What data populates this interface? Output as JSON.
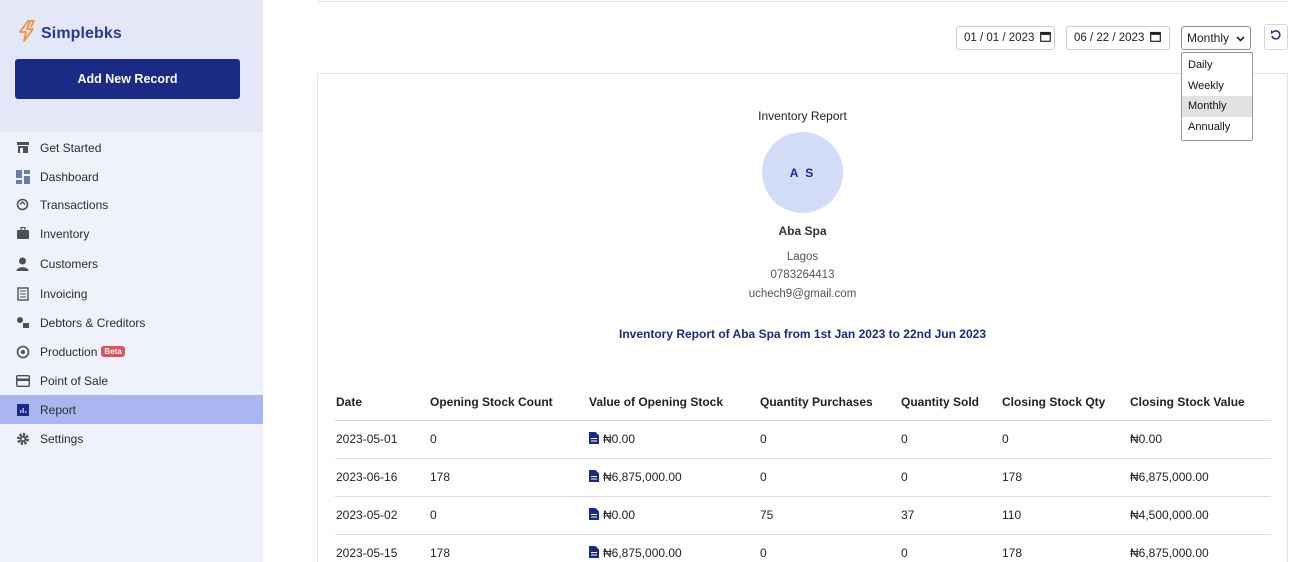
{
  "brand": {
    "name": "Simplebks",
    "logo_icon": "bolt-logo-icon",
    "accent": "#1b2a84",
    "logo_color": "#f0913a"
  },
  "sidebar": {
    "add_button": "Add New Record",
    "items": [
      {
        "label": "Get Started",
        "icon": "store-icon"
      },
      {
        "label": "Dashboard",
        "icon": "dashboard-icon"
      },
      {
        "label": "Transactions",
        "icon": "transactions-icon"
      },
      {
        "label": "Inventory",
        "icon": "briefcase-icon"
      },
      {
        "label": "Customers",
        "icon": "user-icon"
      },
      {
        "label": "Invoicing",
        "icon": "invoice-icon"
      },
      {
        "label": "Debtors & Creditors",
        "icon": "debtors-icon"
      },
      {
        "label": "Production",
        "icon": "production-icon",
        "badge": "Beta"
      },
      {
        "label": "Point of Sale",
        "icon": "card-icon"
      },
      {
        "label": "Report",
        "icon": "report-icon",
        "active": true
      },
      {
        "label": "Settings",
        "icon": "gear-icon"
      }
    ]
  },
  "filters": {
    "start_date": "01 / 01 / 2023",
    "end_date": "06 / 22 / 2023",
    "period": "Monthly",
    "period_options": [
      "Daily",
      "Weekly",
      "Monthly",
      "Annually"
    ],
    "selected_option": "Monthly"
  },
  "report": {
    "title": "Inventory Report",
    "initials": "A S",
    "business_name": "Aba Spa",
    "location": "Lagos",
    "phone": "0783264413",
    "email": "uchech9@gmail.com",
    "summary": "Inventory Report of Aba Spa from 1st Jan 2023 to 22nd Jun 2023"
  },
  "table": {
    "headers": [
      "Date",
      "Opening Stock Count",
      "Value of Opening Stock",
      "Quantity Purchases",
      "Quantity Sold",
      "Closing Stock Qty",
      "Closing Stock Value"
    ],
    "rows": [
      [
        "2023-05-01",
        "0",
        "₦0.00",
        "0",
        "0",
        "0",
        "₦0.00"
      ],
      [
        "2023-06-16",
        "178",
        "₦6,875,000.00",
        "0",
        "0",
        "178",
        "₦6,875,000.00"
      ],
      [
        "2023-05-02",
        "0",
        "₦0.00",
        "75",
        "37",
        "110",
        "₦4,500,000.00"
      ],
      [
        "2023-05-15",
        "178",
        "₦6,875,000.00",
        "0",
        "0",
        "178",
        "₦6,875,000.00"
      ]
    ]
  }
}
